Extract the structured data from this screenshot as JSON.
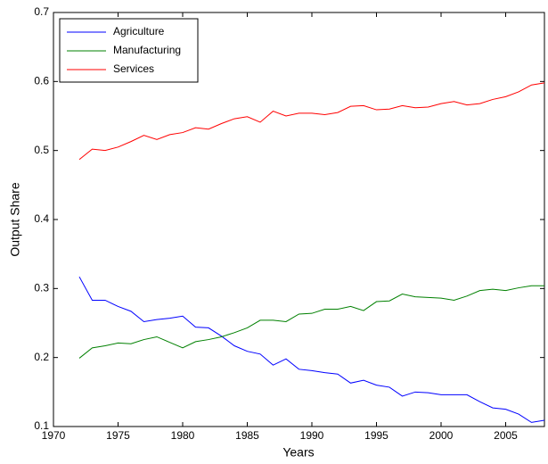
{
  "chart_data": {
    "type": "line",
    "x_label": "Years",
    "y_label": "Output Share",
    "x": [
      1972,
      1973,
      1974,
      1975,
      1976,
      1977,
      1978,
      1979,
      1980,
      1981,
      1982,
      1983,
      1984,
      1985,
      1986,
      1987,
      1988,
      1989,
      1990,
      1991,
      1992,
      1993,
      1994,
      1995,
      1996,
      1997,
      1998,
      1999,
      2000,
      2001,
      2002,
      2003,
      2004,
      2005,
      2006,
      2007,
      2008
    ],
    "series": [
      {
        "name": "Agriculture",
        "color": "#0000ff",
        "values": [
          0.317,
          0.283,
          0.283,
          0.274,
          0.267,
          0.252,
          0.255,
          0.257,
          0.26,
          0.244,
          0.243,
          0.231,
          0.217,
          0.209,
          0.205,
          0.189,
          0.198,
          0.183,
          0.181,
          0.178,
          0.176,
          0.163,
          0.167,
          0.16,
          0.157,
          0.144,
          0.15,
          0.149,
          0.146,
          0.146,
          0.146,
          0.136,
          0.127,
          0.125,
          0.118,
          0.106,
          0.109
        ]
      },
      {
        "name": "Manufacturing",
        "color": "#008000",
        "values": [
          0.199,
          0.214,
          0.217,
          0.221,
          0.22,
          0.226,
          0.23,
          0.222,
          0.214,
          0.223,
          0.226,
          0.23,
          0.236,
          0.243,
          0.254,
          0.254,
          0.252,
          0.263,
          0.264,
          0.27,
          0.27,
          0.274,
          0.268,
          0.281,
          0.282,
          0.292,
          0.288,
          0.287,
          0.286,
          0.283,
          0.289,
          0.297,
          0.299,
          0.297,
          0.301,
          0.304,
          0.304
        ]
      },
      {
        "name": "Services",
        "color": "#ff0000",
        "values": [
          0.487,
          0.502,
          0.5,
          0.505,
          0.513,
          0.522,
          0.516,
          0.523,
          0.526,
          0.533,
          0.531,
          0.539,
          0.546,
          0.549,
          0.541,
          0.557,
          0.55,
          0.554,
          0.554,
          0.552,
          0.555,
          0.564,
          0.565,
          0.559,
          0.56,
          0.565,
          0.562,
          0.563,
          0.568,
          0.571,
          0.566,
          0.568,
          0.574,
          0.578,
          0.585,
          0.595,
          0.598
        ]
      }
    ],
    "xlim": [
      1970,
      2008
    ],
    "xticks": [
      1970,
      1975,
      1980,
      1985,
      1990,
      1995,
      2000,
      2005
    ],
    "ylim": [
      0.1,
      0.7
    ],
    "yticks": [
      0.1,
      0.2,
      0.3,
      0.4,
      0.5,
      0.6,
      0.7
    ],
    "legend": "top-left"
  }
}
